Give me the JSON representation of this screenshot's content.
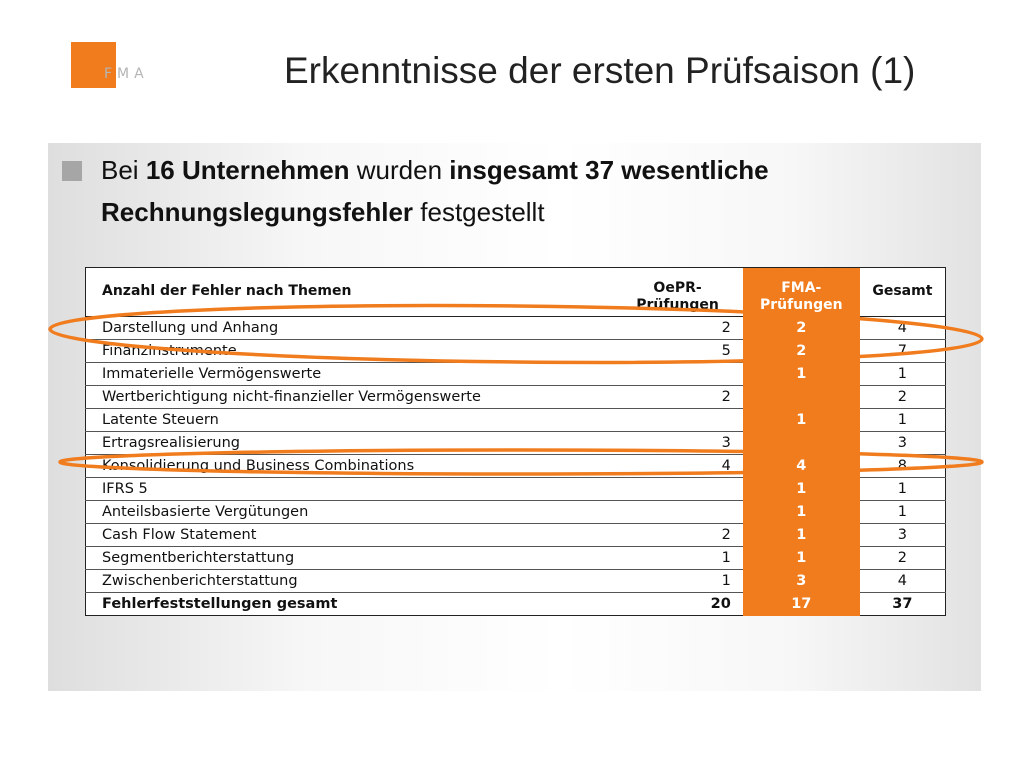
{
  "logo": {
    "text": "FMA",
    "color": "#f07c1e"
  },
  "title": "Erkenntnisse der ersten Prüfsaison (1)",
  "bullet": {
    "line1": {
      "t1": "Bei ",
      "b1": "16 Unternehmen",
      "t2": " wurden ",
      "b2": "insgesamt 37 wesentliche"
    },
    "line2": {
      "b1": "Rechnungslegungsfehler",
      "t1": " festgestellt"
    }
  },
  "table": {
    "headers": {
      "label": "Anzahl der Fehler nach Themen",
      "oepr": "OePR-\nPrüfungen",
      "fma": "FMA-\nPrüfungen",
      "gesamt": "Gesamt"
    },
    "rows": [
      {
        "label": "Darstellung und Anhang",
        "oepr": "2",
        "fma": "2",
        "gesamt": "4"
      },
      {
        "label": "Finanzinstrumente",
        "oepr": "5",
        "fma": "2",
        "gesamt": "7"
      },
      {
        "label": "Immaterielle Vermögenswerte",
        "oepr": "",
        "fma": "1",
        "gesamt": "1"
      },
      {
        "label": "Wertberichtigung nicht-finanzieller Vermögenswerte",
        "oepr": "2",
        "fma": "",
        "gesamt": "2"
      },
      {
        "label": "Latente Steuern",
        "oepr": "",
        "fma": "1",
        "gesamt": "1"
      },
      {
        "label": "Ertragsrealisierung",
        "oepr": "3",
        "fma": "",
        "gesamt": "3"
      },
      {
        "label": "Konsolidierung und Business Combinations",
        "oepr": "4",
        "fma": "4",
        "gesamt": "8"
      },
      {
        "label": "IFRS 5",
        "oepr": "",
        "fma": "1",
        "gesamt": "1"
      },
      {
        "label": "Anteilsbasierte Vergütungen",
        "oepr": "",
        "fma": "1",
        "gesamt": "1"
      },
      {
        "label": "Cash Flow Statement",
        "oepr": "2",
        "fma": "1",
        "gesamt": "3"
      },
      {
        "label": "Segmentberichterstattung",
        "oepr": "1",
        "fma": "1",
        "gesamt": "2"
      },
      {
        "label": "Zwischenberichterstattung",
        "oepr": "1",
        "fma": "3",
        "gesamt": "4"
      }
    ],
    "total": {
      "label": "Fehlerfeststellungen gesamt",
      "oepr": "20",
      "fma": "17",
      "gesamt": "37"
    }
  },
  "highlight_color": "#f07c1e"
}
